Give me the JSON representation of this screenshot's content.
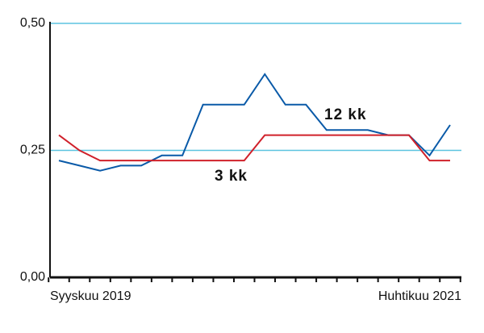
{
  "chart_data": {
    "type": "line",
    "categories": [
      "Syyskuu 2019",
      null,
      null,
      null,
      null,
      null,
      null,
      null,
      null,
      null,
      null,
      null,
      null,
      null,
      null,
      null,
      null,
      null,
      null,
      "Huhtikuu 2021"
    ],
    "series": [
      {
        "name": "12 kk",
        "color": "#0a5aa8",
        "values": [
          0.23,
          0.22,
          0.21,
          0.22,
          0.22,
          0.24,
          0.24,
          0.34,
          0.34,
          0.34,
          0.4,
          0.34,
          0.34,
          0.29,
          0.29,
          0.29,
          0.28,
          0.28,
          0.24,
          0.3
        ]
      },
      {
        "name": "3 kk",
        "color": "#d0202a",
        "values": [
          0.28,
          0.25,
          0.23,
          0.23,
          0.23,
          0.23,
          0.23,
          0.23,
          0.23,
          0.23,
          0.28,
          0.28,
          0.28,
          0.28,
          0.28,
          0.28,
          0.28,
          0.28,
          0.23,
          0.23
        ]
      }
    ],
    "ylim": [
      0,
      0.5
    ],
    "yticks": [
      {
        "value": 0,
        "label": "0,00"
      },
      {
        "value": 0.25,
        "label": "0,25"
      },
      {
        "value": 0.5,
        "label": "0,50"
      }
    ],
    "grid": true,
    "grid_color": "#5bc3e0"
  }
}
